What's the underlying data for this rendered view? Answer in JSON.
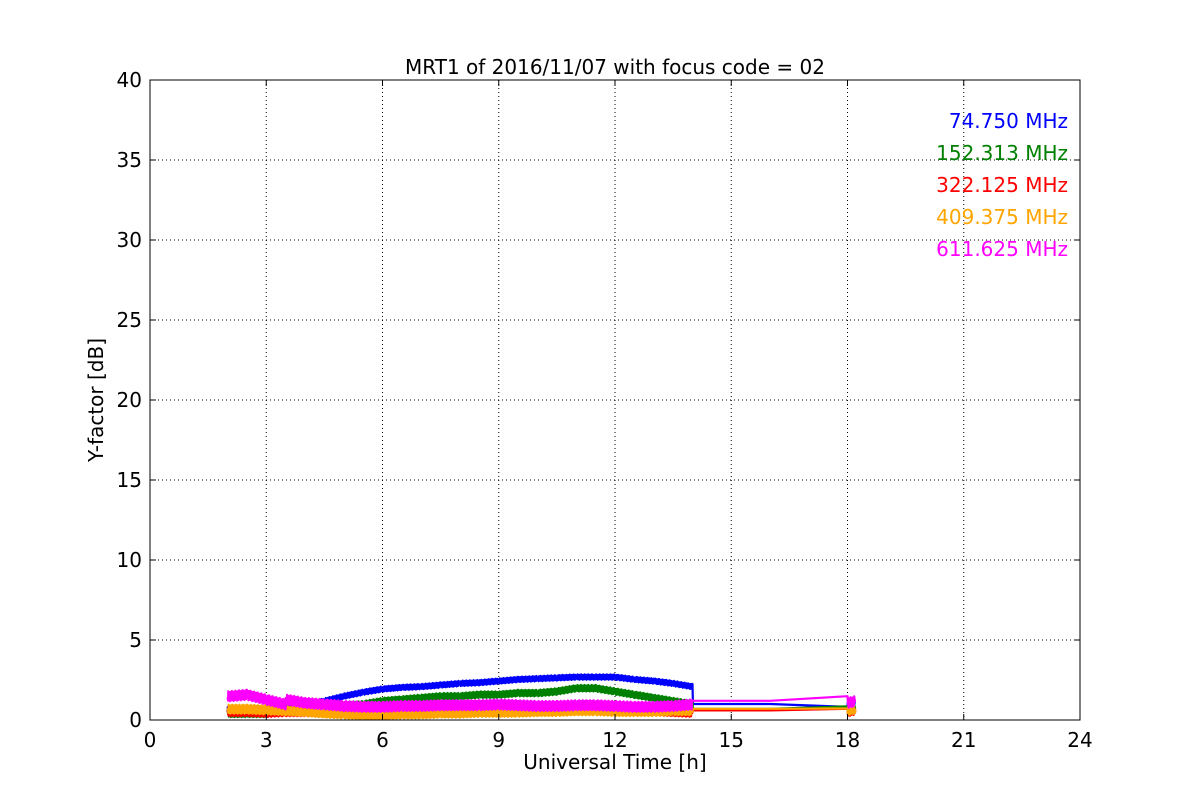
{
  "chart_data": {
    "type": "line",
    "title": "MRT1 of 2016/11/07 with focus code = 02",
    "xlabel": "Universal Time [h]",
    "ylabel": "Y-factor [dB]",
    "xlim": [
      0,
      24
    ],
    "ylim": [
      0,
      40
    ],
    "xticks": [
      0,
      3,
      6,
      9,
      12,
      15,
      18,
      21,
      24
    ],
    "yticks": [
      0,
      5,
      10,
      15,
      20,
      25,
      30,
      35,
      40
    ],
    "grid": true,
    "legend_position": "top-right",
    "series": [
      {
        "name": "74.750 MHz",
        "color": "#0000ff",
        "x": [
          2.0,
          2.5,
          3.0,
          3.5,
          4.0,
          4.5,
          5.0,
          5.5,
          6.0,
          6.5,
          7.0,
          7.5,
          8.0,
          8.5,
          9.0,
          9.5,
          10.0,
          10.5,
          11.0,
          11.5,
          12.0,
          12.5,
          13.0,
          13.5,
          14.0,
          14.01,
          18.0,
          18.01,
          18.2
        ],
        "y": [
          0.7,
          0.7,
          0.7,
          0.75,
          0.9,
          1.2,
          1.5,
          1.75,
          1.95,
          2.05,
          2.1,
          2.2,
          2.3,
          2.35,
          2.45,
          2.55,
          2.6,
          2.65,
          2.7,
          2.7,
          2.7,
          2.55,
          2.45,
          2.3,
          2.1,
          1.0,
          1.0,
          0.9,
          1.0
        ]
      },
      {
        "name": "152.313 MHz",
        "color": "#008000",
        "x": [
          2.0,
          2.5,
          3.0,
          3.5,
          4.0,
          4.5,
          5.0,
          5.5,
          6.0,
          6.5,
          7.0,
          7.5,
          8.0,
          8.5,
          9.0,
          9.5,
          10.0,
          10.5,
          11.0,
          11.5,
          12.0,
          12.5,
          13.0,
          13.5,
          14.0,
          14.01,
          18.0,
          18.01,
          18.2
        ],
        "y": [
          0.4,
          0.4,
          0.4,
          0.6,
          0.7,
          0.8,
          0.9,
          1.0,
          1.2,
          1.3,
          1.4,
          1.5,
          1.5,
          1.6,
          1.6,
          1.7,
          1.7,
          1.8,
          2.0,
          2.0,
          1.8,
          1.6,
          1.4,
          1.2,
          1.0,
          0.7,
          0.7,
          0.8,
          0.8
        ]
      },
      {
        "name": "322.125 MHz",
        "color": "#ff0000",
        "x": [
          2.0,
          2.5,
          3.0,
          3.5,
          4.0,
          4.5,
          5.0,
          5.5,
          6.0,
          6.5,
          7.0,
          7.5,
          8.0,
          8.5,
          9.0,
          9.5,
          10.0,
          10.5,
          11.0,
          11.5,
          12.0,
          12.5,
          13.0,
          13.5,
          14.0,
          14.01,
          18.0,
          18.01,
          18.2
        ],
        "y": [
          0.5,
          0.5,
          0.45,
          0.5,
          0.5,
          0.45,
          0.4,
          0.4,
          0.45,
          0.5,
          0.5,
          0.55,
          0.6,
          0.6,
          0.6,
          0.65,
          0.7,
          0.7,
          0.8,
          0.8,
          0.7,
          0.6,
          0.55,
          0.5,
          0.45,
          0.6,
          0.6,
          0.5,
          0.6
        ]
      },
      {
        "name": "409.375 MHz",
        "color": "#ffa500",
        "x": [
          2.0,
          2.5,
          3.0,
          3.5,
          4.0,
          4.5,
          5.0,
          5.5,
          6.0,
          6.5,
          7.0,
          7.5,
          8.0,
          8.5,
          9.0,
          9.5,
          10.0,
          10.5,
          11.0,
          11.5,
          12.0,
          12.5,
          13.0,
          13.5,
          14.0,
          14.01,
          18.0,
          18.01,
          18.2
        ],
        "y": [
          0.7,
          0.7,
          0.65,
          0.6,
          0.55,
          0.45,
          0.4,
          0.35,
          0.35,
          0.4,
          0.4,
          0.45,
          0.45,
          0.5,
          0.5,
          0.5,
          0.55,
          0.55,
          0.6,
          0.6,
          0.55,
          0.55,
          0.55,
          0.6,
          0.6,
          0.7,
          0.7,
          0.6,
          0.7
        ]
      },
      {
        "name": "611.625 MHz",
        "color": "#ff00ff",
        "x": [
          2.0,
          2.5,
          3.0,
          3.5,
          3.51,
          4.0,
          4.5,
          5.0,
          5.5,
          6.0,
          6.5,
          7.0,
          7.5,
          8.0,
          8.5,
          9.0,
          9.5,
          10.0,
          10.5,
          11.0,
          11.5,
          12.0,
          12.5,
          13.0,
          13.5,
          14.0,
          14.01,
          18.0,
          18.01,
          18.2
        ],
        "y": [
          1.5,
          1.6,
          1.3,
          1.0,
          1.3,
          1.1,
          1.0,
          0.9,
          0.85,
          0.85,
          0.9,
          0.9,
          0.95,
          0.95,
          0.95,
          1.0,
          0.95,
          0.9,
          0.9,
          0.95,
          0.95,
          0.9,
          0.85,
          0.85,
          0.9,
          1.0,
          1.2,
          1.2,
          1.1,
          1.2
        ]
      }
    ]
  }
}
